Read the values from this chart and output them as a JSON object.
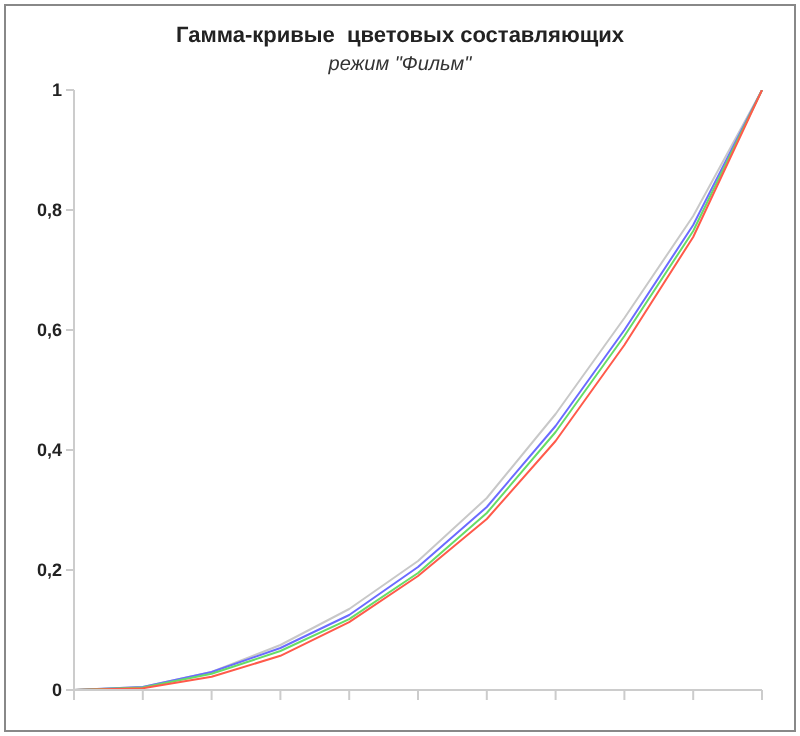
{
  "chart_data": {
    "type": "line",
    "title": "Гамма-кривые  цветовых составляющих",
    "subtitle": "режим \"Фильм\"",
    "categories": [
      null,
      null,
      null,
      null,
      null,
      null,
      null,
      null,
      null,
      null,
      null
    ],
    "series": [
      {
        "color": "#c8c8c8",
        "values": [
          0,
          0.005,
          0.03,
          0.075,
          0.135,
          0.215,
          0.32,
          0.46,
          0.62,
          0.79,
          1
        ]
      },
      {
        "color": "#6b6bff",
        "values": [
          0,
          0.005,
          0.03,
          0.07,
          0.125,
          0.205,
          0.305,
          0.44,
          0.6,
          0.775,
          1
        ]
      },
      {
        "color": "#66dd66",
        "values": [
          0,
          0.004,
          0.027,
          0.065,
          0.118,
          0.195,
          0.295,
          0.43,
          0.59,
          0.765,
          1
        ]
      },
      {
        "color": "#ff5a4a",
        "values": [
          0,
          0.003,
          0.022,
          0.057,
          0.113,
          0.19,
          0.285,
          0.415,
          0.575,
          0.755,
          1
        ]
      }
    ],
    "ylim": [
      0,
      1
    ],
    "yticks": [
      0,
      {
        "value": 0.2,
        "label": "0,2"
      },
      {
        "value": 0.4,
        "label": "0,4"
      },
      {
        "value": 0.6,
        "label": "0,6"
      },
      {
        "value": 0.8,
        "label": "0,8"
      },
      1
    ],
    "grid": false,
    "legend": false,
    "marker": "none",
    "line_style": "solid",
    "tick_labels": "y"
  }
}
